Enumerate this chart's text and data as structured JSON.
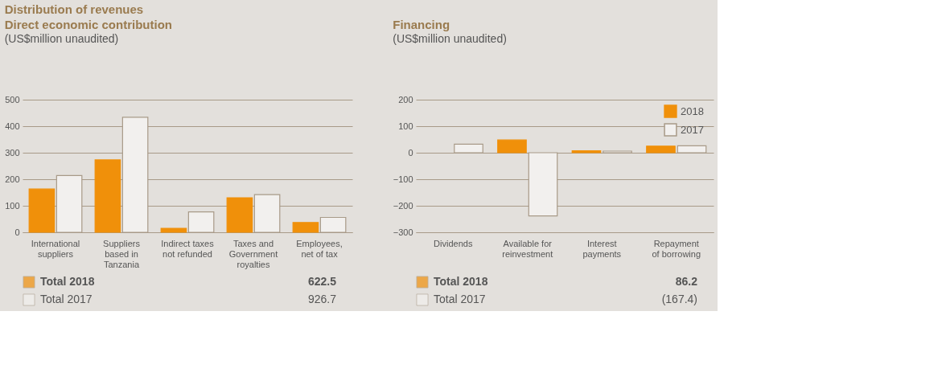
{
  "chart_data": [
    {
      "type": "bar",
      "title": "Direct economic contribution",
      "subtitle": "(US$million unaudited)",
      "categories": [
        "International\nsuppliers",
        "Suppliers\nbased in\nTanzania",
        "Indirect taxes\nnot refunded",
        "Taxes and\nGovernment\nroyalties",
        "Employees,\nnet of tax"
      ],
      "series": [
        {
          "color": "#f0900a",
          "values": [
            163,
            273,
            15,
            130,
            37
          ]
        },
        {
          "color": "#f2f0ee",
          "values": [
            214,
            434,
            77,
            142,
            56
          ]
        }
      ],
      "ylim": [
        0,
        500
      ],
      "yticks": [
        0,
        100,
        200,
        300,
        400,
        500
      ],
      "grid": "y",
      "legend": false,
      "annotations": [
        "Distribution of revenues",
        "Total 2018",
        "622.5",
        "Total 2017",
        "926.7"
      ]
    },
    {
      "type": "bar",
      "title": "Financing",
      "subtitle": "(US$million unaudited)",
      "categories": [
        "Dividends",
        "Available for\nreinvestment",
        "Interest\npayments",
        "Repayment\nof borrowing"
      ],
      "series": [
        {
          "name": "2018",
          "color": "#f0900a",
          "values": [
            null,
            48,
            7,
            25
          ]
        },
        {
          "name": "2017",
          "color": "#f2f0ee",
          "values": [
            32,
            -238,
            6,
            26
          ]
        }
      ],
      "ylim": [
        -300,
        200
      ],
      "yticks": [
        -300,
        -200,
        -100,
        0,
        100,
        200
      ],
      "grid": "y",
      "legend": "top right",
      "annotations": [
        "Total 2018",
        "86.2",
        "Total 2017",
        "(167.4)"
      ]
    }
  ]
}
